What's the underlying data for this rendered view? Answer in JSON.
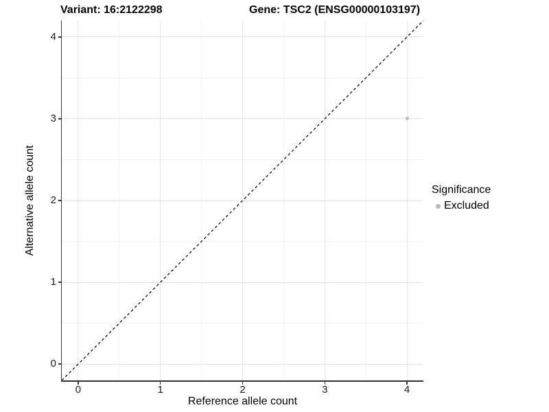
{
  "chart_data": {
    "type": "scatter",
    "titles": {
      "left": "Variant: 16:2122298",
      "right": "Gene: TSC2 (ENSG00000103197)"
    },
    "xlabel": "Reference allele count",
    "ylabel": "Alternative allele count",
    "xlim": [
      -0.2,
      4.2
    ],
    "ylim": [
      -0.2,
      4.2
    ],
    "xticks": [
      0,
      1,
      2,
      3,
      4
    ],
    "yticks": [
      0,
      1,
      2,
      3,
      4
    ],
    "grid": {
      "major": true,
      "minor": true,
      "minor_at_midpoints": true
    },
    "points": [
      {
        "x": 4,
        "y": 3,
        "series": "Excluded"
      }
    ],
    "reference_line": {
      "type": "identity",
      "style": "dashed",
      "from": [
        -0.2,
        -0.2
      ],
      "to": [
        4.2,
        4.2
      ],
      "color": "#000000"
    },
    "legend": {
      "title": "Significance",
      "position": "right",
      "items": [
        {
          "label": "Excluded",
          "color": "#b9b9b9"
        }
      ]
    },
    "colors": {
      "grid_major": "#e3e3e3",
      "grid_minor": "#f0f0f0",
      "axis_line": "#333333",
      "background": "#ffffff"
    }
  }
}
